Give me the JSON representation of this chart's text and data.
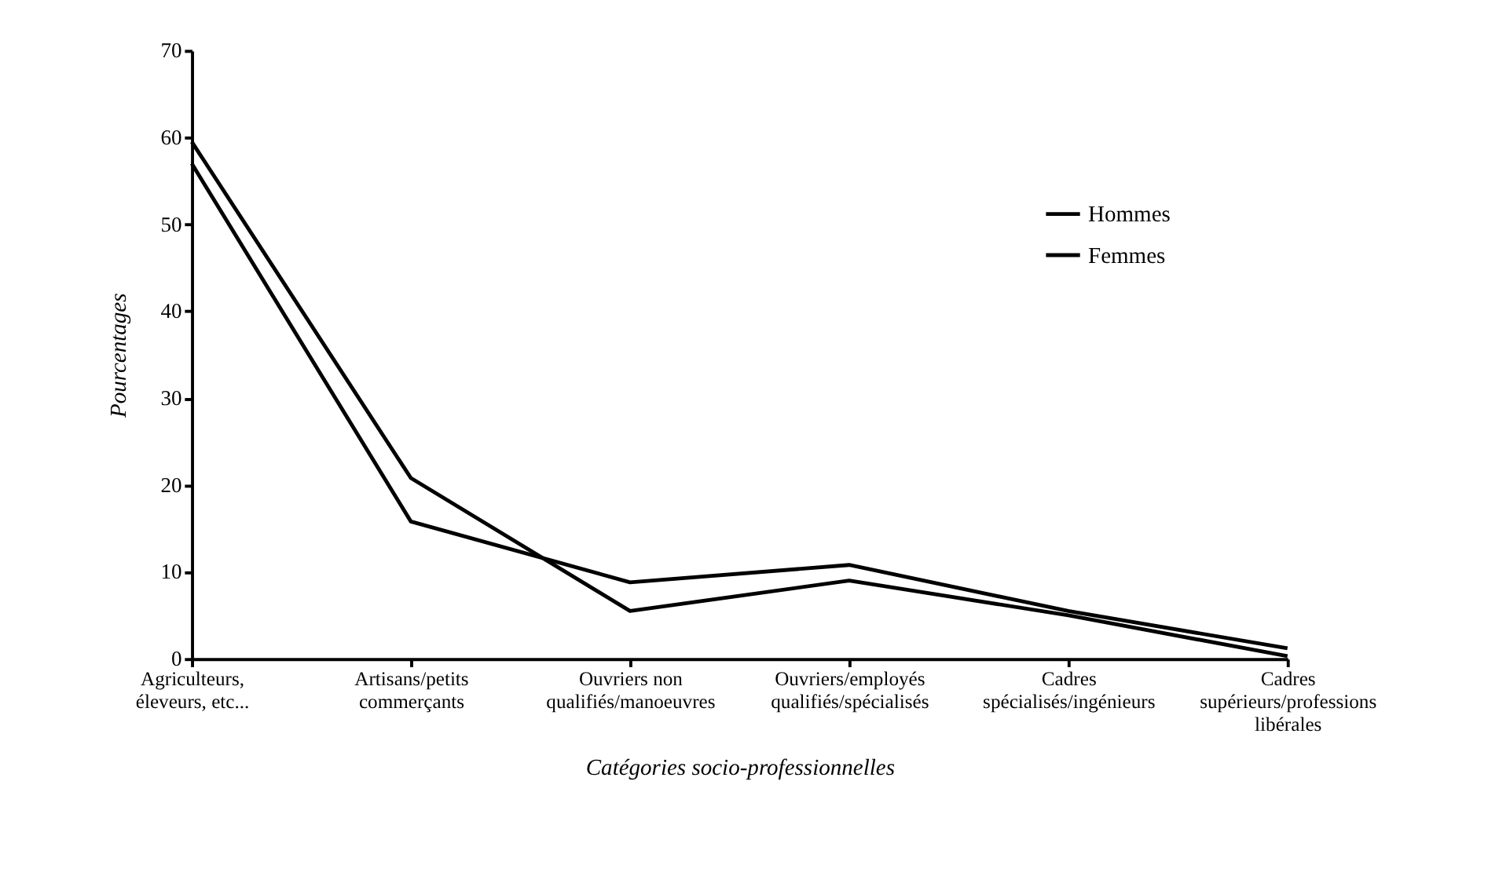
{
  "chart_data": {
    "type": "line",
    "xlabel": "Catégories socio-professionnelles",
    "ylabel": "Pourcentages",
    "categories": [
      "Agriculteurs, éleveurs, etc...",
      "Artisans/petits commerçants",
      "Ouvriers non qualifiés/manoeuvres",
      "Ouvriers/employés qualifiés/spécialisés",
      "Cadres spécialisés/ingénieurs",
      "Cadres supérieurs/professions libérales"
    ],
    "series": [
      {
        "name": "Hommes",
        "color": "#000000",
        "values": [
          59.5,
          20.8,
          5.5,
          9.0,
          5.0,
          0.3
        ]
      },
      {
        "name": "Femmes",
        "color": "#000000",
        "values": [
          57.0,
          15.8,
          8.8,
          10.8,
          5.5,
          1.2
        ]
      }
    ],
    "ylim": [
      0,
      70
    ],
    "yticks": [
      0,
      10,
      20,
      30,
      40,
      50,
      60,
      70
    ],
    "grid": false,
    "legend": "top right",
    "marker": "none",
    "line_style": "solid"
  }
}
